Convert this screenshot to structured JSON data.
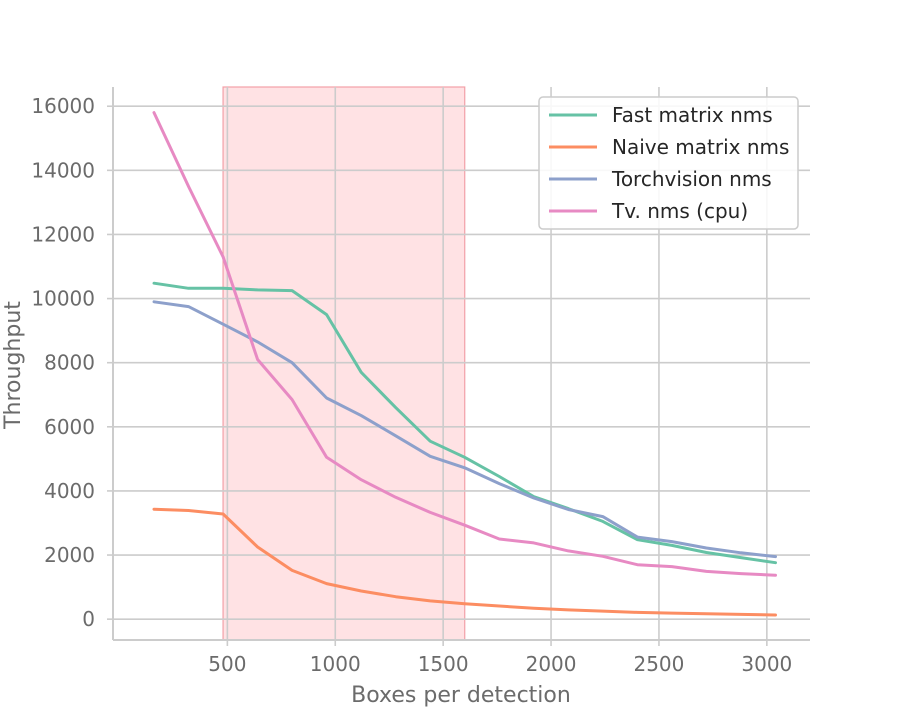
{
  "chart_data": {
    "type": "line",
    "title": "",
    "xlabel": "Boxes per detection",
    "ylabel": "Throughput",
    "xlim": [
      -30,
      3200
    ],
    "ylim": [
      -650,
      16600
    ],
    "xticks": [
      500,
      1000,
      1500,
      2000,
      2500,
      3000
    ],
    "yticks": [
      0,
      2000,
      4000,
      6000,
      8000,
      10000,
      12000,
      14000,
      16000
    ],
    "grid": true,
    "legend_position": "top-right",
    "shaded_region": {
      "x_start": 480,
      "x_end": 1600,
      "color": "#ffe2e4",
      "edge_color": "#f2a0a8"
    },
    "series": [
      {
        "name": "Fast matrix nms",
        "color": "#66c2a5",
        "x": [
          160,
          320,
          480,
          640,
          800,
          960,
          1120,
          1280,
          1440,
          1600,
          1760,
          1920,
          2080,
          2240,
          2400,
          2560,
          2720,
          2880,
          3040
        ],
        "y": [
          10480,
          10320,
          10320,
          10270,
          10250,
          9500,
          7700,
          6600,
          5550,
          5050,
          4450,
          3820,
          3450,
          3050,
          2480,
          2300,
          2080,
          1920,
          1760
        ]
      },
      {
        "name": "Naive matrix nms",
        "color": "#fc8d62",
        "x": [
          160,
          320,
          480,
          640,
          800,
          960,
          1120,
          1280,
          1440,
          1600,
          1760,
          1920,
          2080,
          2240,
          2400,
          2560,
          2720,
          2880,
          3040
        ],
        "y": [
          3430,
          3390,
          3280,
          2250,
          1520,
          1110,
          880,
          700,
          570,
          480,
          410,
          340,
          290,
          250,
          210,
          190,
          170,
          150,
          130
        ]
      },
      {
        "name": "Torchvision nms",
        "color": "#8da0cb",
        "x": [
          160,
          320,
          480,
          640,
          800,
          960,
          1120,
          1280,
          1440,
          1600,
          1760,
          1920,
          2080,
          2240,
          2400,
          2560,
          2720,
          2880,
          3040
        ],
        "y": [
          9900,
          9750,
          9200,
          8650,
          8000,
          6900,
          6350,
          5720,
          5080,
          4720,
          4230,
          3780,
          3420,
          3200,
          2560,
          2420,
          2220,
          2070,
          1950
        ]
      },
      {
        "name": "Tv. nms (cpu)",
        "color": "#e78ac3",
        "x": [
          160,
          320,
          480,
          640,
          800,
          960,
          1120,
          1280,
          1440,
          1600,
          1760,
          1920,
          2080,
          2240,
          2400,
          2560,
          2720,
          2880,
          3040
        ],
        "y": [
          15800,
          13500,
          11300,
          8100,
          6850,
          5050,
          4350,
          3800,
          3330,
          2930,
          2500,
          2380,
          2130,
          1960,
          1700,
          1640,
          1490,
          1420,
          1370
        ]
      }
    ]
  }
}
